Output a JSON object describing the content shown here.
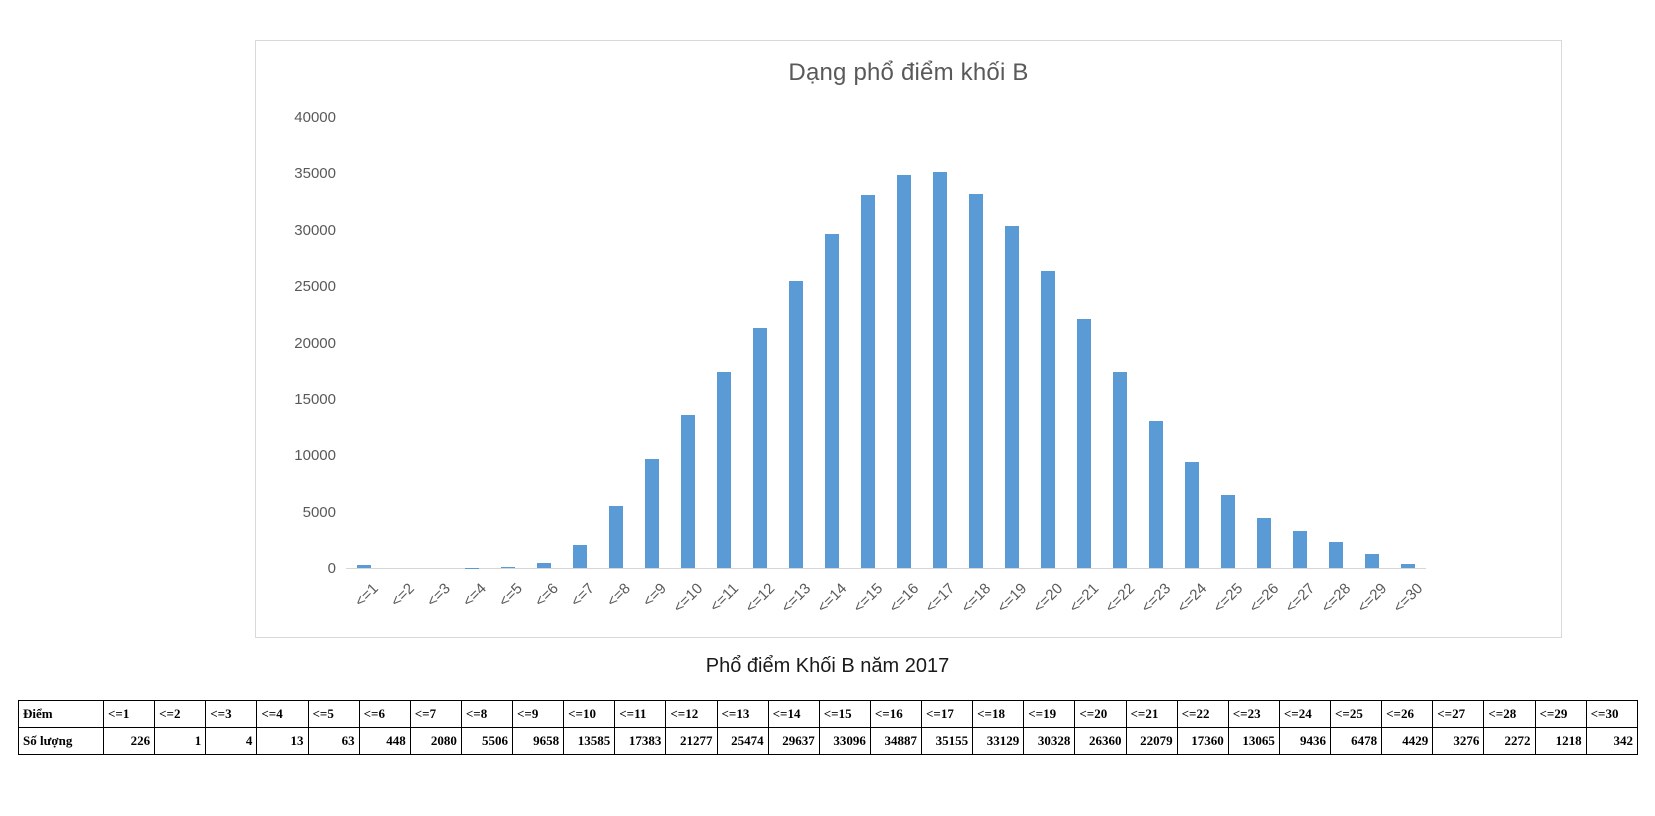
{
  "chart_data": {
    "type": "bar",
    "title": "Dạng phổ điểm khối B",
    "xlabel": "",
    "ylabel": "",
    "categories": [
      "<=1",
      "<=2",
      "<=3",
      "<=4",
      "<=5",
      "<=6",
      "<=7",
      "<=8",
      "<=9",
      "<=10",
      "<=11",
      "<=12",
      "<=13",
      "<=14",
      "<=15",
      "<=16",
      "<=17",
      "<=18",
      "<=19",
      "<=20",
      "<=21",
      "<=22",
      "<=23",
      "<=24",
      "<=25",
      "<=26",
      "<=27",
      "<=28",
      "<=29",
      "<=30"
    ],
    "values": [
      226,
      1,
      4,
      13,
      63,
      448,
      2080,
      5506,
      9658,
      13585,
      17383,
      21277,
      25474,
      29637,
      33096,
      34887,
      35155,
      33129,
      30328,
      26360,
      22079,
      17360,
      13065,
      9436,
      6478,
      4429,
      3276,
      2272,
      1218,
      342
    ],
    "ylim": [
      0,
      40000
    ],
    "yticks": [
      0,
      5000,
      10000,
      15000,
      20000,
      25000,
      30000,
      35000,
      40000
    ],
    "bar_color": "#5B9BD5",
    "grid": false,
    "legend": "none"
  },
  "caption": "Phổ điểm Khối B năm 2017",
  "table": {
    "score_row_label": "Điểm",
    "count_row_label": "Số lượng"
  }
}
